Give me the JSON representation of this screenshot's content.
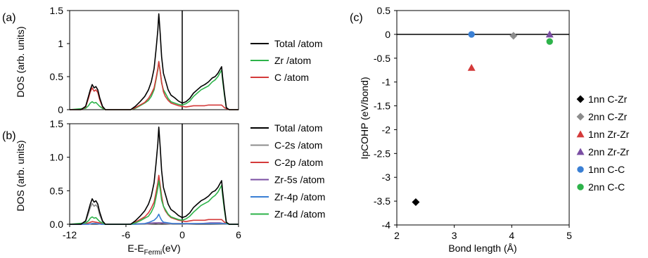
{
  "chart_data": [
    {
      "panel": "(a)",
      "type": "line",
      "ylabel": "DOS (arb. units)",
      "xlim": [
        -12,
        6
      ],
      "ylim": [
        0,
        1.5
      ],
      "yticks": [
        "0",
        "0.5",
        "1",
        "1.5"
      ],
      "fermi_line_at": 0,
      "legend_position": "right",
      "series": [
        {
          "name": "Total /atom",
          "color": "#000000",
          "x": [
            -12,
            -10.8,
            -10.3,
            -10.0,
            -9.8,
            -9.6,
            -9.4,
            -9.2,
            -9.0,
            -8.8,
            -8.5,
            -8.2,
            -7.5,
            -6.5,
            -5.5,
            -5.0,
            -4.5,
            -4.0,
            -3.6,
            -3.3,
            -3.0,
            -2.8,
            -2.6,
            -2.5,
            -2.35,
            -2.2,
            -2.0,
            -1.8,
            -1.5,
            -1.2,
            -0.8,
            -0.4,
            0,
            0.4,
            0.8,
            1.2,
            1.6,
            2.0,
            2.4,
            2.8,
            3.2,
            3.5,
            3.8,
            4.0,
            4.2,
            4.3,
            4.5,
            4.7,
            5.0,
            6
          ],
          "y": [
            0,
            0,
            0.05,
            0.2,
            0.3,
            0.38,
            0.33,
            0.35,
            0.3,
            0.18,
            0.05,
            0,
            0,
            0,
            0,
            0.05,
            0.12,
            0.2,
            0.3,
            0.42,
            0.62,
            0.9,
            1.2,
            1.45,
            1.15,
            0.8,
            0.55,
            0.45,
            0.3,
            0.22,
            0.18,
            0.13,
            0.1,
            0.12,
            0.17,
            0.25,
            0.3,
            0.35,
            0.38,
            0.42,
            0.48,
            0.5,
            0.55,
            0.6,
            0.65,
            0.5,
            0.25,
            0.03,
            0,
            0
          ]
        },
        {
          "name": "Zr /atom",
          "color": "#2db34a",
          "x": [
            -12,
            -10.3,
            -10.0,
            -9.8,
            -9.6,
            -9.4,
            -9.2,
            -9.0,
            -8.8,
            -8.5,
            -8.2,
            -6.5,
            -5.5,
            -5.0,
            -4.5,
            -4.0,
            -3.6,
            -3.3,
            -3.0,
            -2.8,
            -2.6,
            -2.5,
            -2.35,
            -2.2,
            -2.0,
            -1.8,
            -1.5,
            -1.2,
            -0.8,
            -0.4,
            0,
            0.4,
            0.8,
            1.2,
            1.6,
            2.0,
            2.4,
            2.8,
            3.2,
            3.5,
            3.8,
            4.0,
            4.2,
            4.3,
            4.5,
            4.7,
            5.0,
            6
          ],
          "y": [
            0,
            0.02,
            0.06,
            0.1,
            0.12,
            0.1,
            0.11,
            0.08,
            0.05,
            0.02,
            0,
            0,
            0,
            0.02,
            0.06,
            0.1,
            0.14,
            0.2,
            0.3,
            0.45,
            0.6,
            0.72,
            0.58,
            0.4,
            0.3,
            0.25,
            0.17,
            0.12,
            0.1,
            0.08,
            0.07,
            0.09,
            0.13,
            0.2,
            0.25,
            0.3,
            0.33,
            0.36,
            0.42,
            0.45,
            0.5,
            0.55,
            0.6,
            0.45,
            0.22,
            0.02,
            0,
            0
          ]
        },
        {
          "name": "C /atom",
          "color": "#d43a3a",
          "x": [
            -12,
            -10.8,
            -10.3,
            -10.0,
            -9.8,
            -9.6,
            -9.4,
            -9.2,
            -9.0,
            -8.8,
            -8.5,
            -8.2,
            -6.5,
            -5.5,
            -5.0,
            -4.5,
            -4.0,
            -3.6,
            -3.3,
            -3.0,
            -2.8,
            -2.6,
            -2.5,
            -2.35,
            -2.2,
            -2.0,
            -1.8,
            -1.5,
            -1.2,
            -0.8,
            -0.4,
            0,
            0.4,
            0.8,
            1.2,
            1.6,
            2.0,
            2.4,
            2.8,
            3.2,
            3.5,
            3.8,
            4.0,
            4.2,
            4.5,
            5.0,
            6
          ],
          "y": [
            0,
            0,
            0.04,
            0.17,
            0.27,
            0.33,
            0.28,
            0.3,
            0.26,
            0.15,
            0.04,
            0,
            0,
            0,
            0.03,
            0.07,
            0.11,
            0.17,
            0.24,
            0.33,
            0.47,
            0.62,
            0.73,
            0.58,
            0.42,
            0.27,
            0.2,
            0.14,
            0.1,
            0.08,
            0.06,
            0.05,
            0.04,
            0.05,
            0.06,
            0.06,
            0.06,
            0.06,
            0.07,
            0.07,
            0.07,
            0.07,
            0.07,
            0.07,
            0.03,
            0,
            0
          ]
        }
      ]
    },
    {
      "panel": "(b)",
      "type": "line",
      "ylabel": "DOS (arb. units)",
      "xlabel_main": "E-E",
      "xlabel_sub": "Fermi",
      "xlabel_unit": "(eV)",
      "xlim": [
        -12,
        6
      ],
      "ylim": [
        0,
        1.5
      ],
      "xticks": [
        "-12",
        "-6",
        "0",
        "6"
      ],
      "yticks": [
        "0.0",
        "0.5",
        "1.0",
        "1.5"
      ],
      "fermi_line_at": 0,
      "legend_position": "right",
      "series": [
        {
          "name": "Total /atom",
          "color": "#000000",
          "x": [
            -12,
            -10.8,
            -10.3,
            -10.0,
            -9.8,
            -9.6,
            -9.4,
            -9.2,
            -9.0,
            -8.8,
            -8.5,
            -8.2,
            -7.5,
            -6.5,
            -5.5,
            -5.0,
            -4.5,
            -4.0,
            -3.6,
            -3.3,
            -3.0,
            -2.8,
            -2.6,
            -2.5,
            -2.35,
            -2.2,
            -2.0,
            -1.8,
            -1.5,
            -1.2,
            -0.8,
            -0.4,
            0,
            0.4,
            0.8,
            1.2,
            1.6,
            2.0,
            2.4,
            2.8,
            3.2,
            3.5,
            3.8,
            4.0,
            4.2,
            4.3,
            4.5,
            4.7,
            5.0,
            6
          ],
          "y": [
            0,
            0,
            0.05,
            0.2,
            0.3,
            0.38,
            0.33,
            0.35,
            0.3,
            0.18,
            0.05,
            0,
            0,
            0,
            0,
            0.05,
            0.12,
            0.2,
            0.3,
            0.42,
            0.62,
            0.9,
            1.2,
            1.45,
            1.15,
            0.8,
            0.55,
            0.45,
            0.3,
            0.22,
            0.18,
            0.13,
            0.1,
            0.12,
            0.17,
            0.25,
            0.3,
            0.35,
            0.38,
            0.42,
            0.48,
            0.5,
            0.55,
            0.6,
            0.65,
            0.5,
            0.25,
            0.03,
            0,
            0
          ]
        },
        {
          "name": "C-2s /atom",
          "color": "#8c8c8c",
          "x": [
            -12,
            -10.8,
            -10.3,
            -10.0,
            -9.8,
            -9.6,
            -9.4,
            -9.2,
            -9.0,
            -8.8,
            -8.5,
            -8.2,
            -6.5,
            -4.0,
            -3.0,
            -2.5,
            -2.0,
            -1.0,
            0,
            2.0,
            6
          ],
          "y": [
            0,
            0,
            0.04,
            0.16,
            0.25,
            0.31,
            0.27,
            0.29,
            0.25,
            0.14,
            0.04,
            0,
            0,
            0,
            0.01,
            0.02,
            0.01,
            0,
            0,
            0.01,
            0
          ]
        },
        {
          "name": "C-2p /atom",
          "color": "#d43a3a",
          "x": [
            -12,
            -10.5,
            -10.0,
            -9.6,
            -9.2,
            -8.8,
            -8.3,
            -6.5,
            -5.5,
            -5.0,
            -4.5,
            -4.0,
            -3.6,
            -3.3,
            -3.0,
            -2.8,
            -2.6,
            -2.5,
            -2.35,
            -2.2,
            -2.0,
            -1.8,
            -1.5,
            -1.2,
            -0.8,
            -0.4,
            0,
            0.4,
            0.8,
            1.2,
            1.6,
            2.0,
            2.4,
            2.8,
            3.2,
            3.5,
            3.8,
            4.0,
            4.2,
            4.5,
            5.0,
            6
          ],
          "y": [
            0,
            0,
            0.02,
            0.04,
            0.03,
            0.02,
            0,
            0,
            0,
            0.03,
            0.07,
            0.11,
            0.17,
            0.24,
            0.33,
            0.47,
            0.62,
            0.73,
            0.58,
            0.42,
            0.27,
            0.2,
            0.14,
            0.1,
            0.08,
            0.06,
            0.05,
            0.04,
            0.05,
            0.06,
            0.06,
            0.06,
            0.06,
            0.07,
            0.07,
            0.07,
            0.07,
            0.07,
            0.07,
            0.03,
            0,
            0
          ]
        },
        {
          "name": "Zr-5s /atom",
          "color": "#7a4ea3",
          "x": [
            -12,
            -10.0,
            -9.6,
            -9.2,
            -8.6,
            -6.5,
            -4.0,
            -3.0,
            -2.5,
            -2.0,
            -1.0,
            0,
            1.0,
            2.0,
            3.0,
            4.0,
            4.5,
            5.0,
            6
          ],
          "y": [
            0,
            0,
            0.01,
            0.01,
            0,
            0,
            0.01,
            0.02,
            0.02,
            0.02,
            0.01,
            0.01,
            0.01,
            0.01,
            0.02,
            0.02,
            0.01,
            0,
            0
          ]
        },
        {
          "name": "Zr-4p /atom",
          "color": "#3a7fd4",
          "x": [
            -12,
            -10.0,
            -9.6,
            -9.2,
            -8.6,
            -6.5,
            -5.0,
            -4.0,
            -3.5,
            -3.0,
            -2.7,
            -2.5,
            -2.35,
            -2.2,
            -2.0,
            -1.5,
            -1.0,
            0,
            1.0,
            2.0,
            3.0,
            4.0,
            4.5,
            5.0,
            6
          ],
          "y": [
            0,
            0,
            0.01,
            0.01,
            0,
            0,
            0,
            0.01,
            0.03,
            0.06,
            0.1,
            0.15,
            0.1,
            0.06,
            0.03,
            0.02,
            0.01,
            0.01,
            0.01,
            0.01,
            0.01,
            0.01,
            0.01,
            0,
            0
          ]
        },
        {
          "name": "Zr-4d /atom",
          "color": "#2db34a",
          "x": [
            -12,
            -10.3,
            -10.0,
            -9.8,
            -9.6,
            -9.4,
            -9.2,
            -9.0,
            -8.8,
            -8.5,
            -8.2,
            -6.5,
            -5.5,
            -5.0,
            -4.5,
            -4.0,
            -3.6,
            -3.3,
            -3.0,
            -2.8,
            -2.6,
            -2.5,
            -2.35,
            -2.2,
            -2.0,
            -1.8,
            -1.5,
            -1.2,
            -0.8,
            -0.4,
            0,
            0.4,
            0.8,
            1.2,
            1.6,
            2.0,
            2.4,
            2.8,
            3.2,
            3.5,
            3.8,
            4.0,
            4.2,
            4.3,
            4.5,
            4.7,
            5.0,
            6
          ],
          "y": [
            0,
            0.02,
            0.05,
            0.09,
            0.11,
            0.09,
            0.1,
            0.07,
            0.04,
            0.02,
            0,
            0,
            0,
            0.02,
            0.05,
            0.09,
            0.12,
            0.18,
            0.27,
            0.4,
            0.54,
            0.65,
            0.52,
            0.36,
            0.27,
            0.22,
            0.15,
            0.11,
            0.09,
            0.07,
            0.06,
            0.08,
            0.12,
            0.18,
            0.23,
            0.28,
            0.31,
            0.34,
            0.4,
            0.43,
            0.48,
            0.53,
            0.58,
            0.44,
            0.21,
            0.02,
            0,
            0
          ]
        }
      ]
    },
    {
      "panel": "(c)",
      "type": "scatter",
      "xlabel": "Bond length (Å)",
      "ylabel": "IpCOHP (eV/bond)",
      "xlim": [
        2,
        5
      ],
      "ylim": [
        -4,
        0.5
      ],
      "xticks": [
        "2",
        "3",
        "4",
        "5"
      ],
      "yticks": [
        "0.5",
        "0",
        "-0.5",
        "-1",
        "-1.5",
        "-2",
        "-2.5",
        "-3",
        "-3.5",
        "-4"
      ],
      "zero_line": true,
      "legend_position": "right",
      "series": [
        {
          "name": "1nn C-Zr",
          "marker": "diamond",
          "color": "#000000",
          "x": [
            2.33
          ],
          "y": [
            -3.52
          ]
        },
        {
          "name": "2nn C-Zr",
          "marker": "diamond",
          "color": "#8c8c8c",
          "x": [
            4.03
          ],
          "y": [
            -0.03
          ]
        },
        {
          "name": "1nn Zr-Zr",
          "marker": "triangle",
          "color": "#d43a3a",
          "x": [
            3.3
          ],
          "y": [
            -0.7
          ]
        },
        {
          "name": "2nn Zr-Zr",
          "marker": "triangle",
          "color": "#7a4ea3",
          "x": [
            4.66
          ],
          "y": [
            0.0
          ]
        },
        {
          "name": "1nn C-C",
          "marker": "circle",
          "color": "#3a7fd4",
          "x": [
            3.3
          ],
          "y": [
            0.0
          ]
        },
        {
          "name": "2nn C-C",
          "marker": "circle",
          "color": "#2db34a",
          "x": [
            4.66
          ],
          "y": [
            -0.15
          ]
        }
      ]
    }
  ]
}
